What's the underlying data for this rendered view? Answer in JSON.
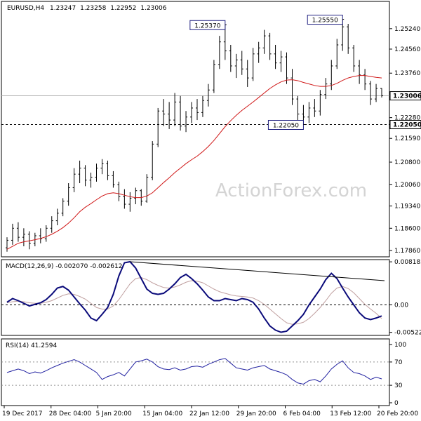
{
  "chart_data": [
    {
      "type": "candlestick",
      "header": {
        "symbol": "EURUSD,H4",
        "open": "1.23247",
        "high": "1.23258",
        "low": "1.22952",
        "close": "1.23006"
      },
      "y_ticks": [
        "1.25240",
        "1.24560",
        "1.23760",
        "1.22280",
        "1.21590",
        "1.20800",
        "1.20060",
        "1.19340",
        "1.18600",
        "1.17860"
      ],
      "ylim": [
        1.1765,
        1.261
      ],
      "last_price": "1.23006",
      "support_level": "1.22050",
      "callouts": [
        "1.25370",
        "1.25550",
        "1.22050"
      ],
      "watermark": "ActionForex.com",
      "price_ohlc": [
        {
          "o": 1.1795,
          "h": 1.183,
          "l": 1.1782,
          "c": 1.182
        },
        {
          "o": 1.182,
          "h": 1.1875,
          "l": 1.1805,
          "c": 1.186
        },
        {
          "o": 1.186,
          "h": 1.188,
          "l": 1.1815,
          "c": 1.183
        },
        {
          "o": 1.183,
          "h": 1.186,
          "l": 1.18,
          "c": 1.184
        },
        {
          "o": 1.184,
          "h": 1.185,
          "l": 1.179,
          "c": 1.181
        },
        {
          "o": 1.181,
          "h": 1.1845,
          "l": 1.18,
          "c": 1.1835
        },
        {
          "o": 1.1835,
          "h": 1.186,
          "l": 1.181,
          "c": 1.1825
        },
        {
          "o": 1.1825,
          "h": 1.187,
          "l": 1.1815,
          "c": 1.186
        },
        {
          "o": 1.186,
          "h": 1.19,
          "l": 1.1845,
          "c": 1.1885
        },
        {
          "o": 1.1885,
          "h": 1.1925,
          "l": 1.187,
          "c": 1.191
        },
        {
          "o": 1.191,
          "h": 1.196,
          "l": 1.19,
          "c": 1.195
        },
        {
          "o": 1.195,
          "h": 1.201,
          "l": 1.1935,
          "c": 1.1995
        },
        {
          "o": 1.1995,
          "h": 1.206,
          "l": 1.198,
          "c": 1.204
        },
        {
          "o": 1.204,
          "h": 1.2085,
          "l": 1.201,
          "c": 1.206
        },
        {
          "o": 1.206,
          "h": 1.207,
          "l": 1.2,
          "c": 1.202
        },
        {
          "o": 1.202,
          "h": 1.2045,
          "l": 1.1995,
          "c": 1.203
        },
        {
          "o": 1.203,
          "h": 1.2075,
          "l": 1.2015,
          "c": 1.206
        },
        {
          "o": 1.206,
          "h": 1.209,
          "l": 1.204,
          "c": 1.2075
        },
        {
          "o": 1.2075,
          "h": 1.2085,
          "l": 1.202,
          "c": 1.2035
        },
        {
          "o": 1.2035,
          "h": 1.205,
          "l": 1.1995,
          "c": 1.2005
        },
        {
          "o": 1.2005,
          "h": 1.2015,
          "l": 1.195,
          "c": 1.1965
        },
        {
          "o": 1.1965,
          "h": 1.199,
          "l": 1.1925,
          "c": 1.194
        },
        {
          "o": 1.194,
          "h": 1.198,
          "l": 1.1915,
          "c": 1.196
        },
        {
          "o": 1.196,
          "h": 1.1995,
          "l": 1.194,
          "c": 1.1985
        },
        {
          "o": 1.1985,
          "h": 1.199,
          "l": 1.1935,
          "c": 1.195
        },
        {
          "o": 1.195,
          "h": 1.204,
          "l": 1.1945,
          "c": 1.203
        },
        {
          "o": 1.203,
          "h": 1.215,
          "l": 1.202,
          "c": 1.214
        },
        {
          "o": 1.214,
          "h": 1.226,
          "l": 1.213,
          "c": 1.225
        },
        {
          "o": 1.225,
          "h": 1.229,
          "l": 1.22,
          "c": 1.224
        },
        {
          "o": 1.224,
          "h": 1.228,
          "l": 1.219,
          "c": 1.222
        },
        {
          "o": 1.222,
          "h": 1.231,
          "l": 1.22,
          "c": 1.228
        },
        {
          "o": 1.228,
          "h": 1.23,
          "l": 1.2185,
          "c": 1.22
        },
        {
          "o": 1.22,
          "h": 1.225,
          "l": 1.218,
          "c": 1.223
        },
        {
          "o": 1.223,
          "h": 1.228,
          "l": 1.221,
          "c": 1.226
        },
        {
          "o": 1.226,
          "h": 1.229,
          "l": 1.222,
          "c": 1.2245
        },
        {
          "o": 1.2245,
          "h": 1.23,
          "l": 1.223,
          "c": 1.2285
        },
        {
          "o": 1.2285,
          "h": 1.234,
          "l": 1.2265,
          "c": 1.232
        },
        {
          "o": 1.232,
          "h": 1.242,
          "l": 1.231,
          "c": 1.2405
        },
        {
          "o": 1.2405,
          "h": 1.25,
          "l": 1.239,
          "c": 1.248
        },
        {
          "o": 1.248,
          "h": 1.2537,
          "l": 1.242,
          "c": 1.245
        },
        {
          "o": 1.245,
          "h": 1.247,
          "l": 1.238,
          "c": 1.24
        },
        {
          "o": 1.24,
          "h": 1.244,
          "l": 1.236,
          "c": 1.242
        },
        {
          "o": 1.242,
          "h": 1.245,
          "l": 1.237,
          "c": 1.239
        },
        {
          "o": 1.239,
          "h": 1.242,
          "l": 1.233,
          "c": 1.236
        },
        {
          "o": 1.236,
          "h": 1.246,
          "l": 1.235,
          "c": 1.244
        },
        {
          "o": 1.244,
          "h": 1.248,
          "l": 1.241,
          "c": 1.246
        },
        {
          "o": 1.246,
          "h": 1.252,
          "l": 1.244,
          "c": 1.25
        },
        {
          "o": 1.25,
          "h": 1.251,
          "l": 1.242,
          "c": 1.244
        },
        {
          "o": 1.244,
          "h": 1.247,
          "l": 1.239,
          "c": 1.241
        },
        {
          "o": 1.241,
          "h": 1.245,
          "l": 1.238,
          "c": 1.243
        },
        {
          "o": 1.243,
          "h": 1.2445,
          "l": 1.234,
          "c": 1.236
        },
        {
          "o": 1.236,
          "h": 1.239,
          "l": 1.227,
          "c": 1.229
        },
        {
          "o": 1.229,
          "h": 1.23,
          "l": 1.222,
          "c": 1.224
        },
        {
          "o": 1.224,
          "h": 1.227,
          "l": 1.2205,
          "c": 1.223
        },
        {
          "o": 1.223,
          "h": 1.228,
          "l": 1.221,
          "c": 1.226
        },
        {
          "o": 1.226,
          "h": 1.229,
          "l": 1.223,
          "c": 1.225
        },
        {
          "o": 1.225,
          "h": 1.232,
          "l": 1.2235,
          "c": 1.2305
        },
        {
          "o": 1.2305,
          "h": 1.236,
          "l": 1.229,
          "c": 1.234
        },
        {
          "o": 1.234,
          "h": 1.242,
          "l": 1.232,
          "c": 1.24
        },
        {
          "o": 1.24,
          "h": 1.249,
          "l": 1.239,
          "c": 1.247
        },
        {
          "o": 1.247,
          "h": 1.2555,
          "l": 1.245,
          "c": 1.253
        },
        {
          "o": 1.253,
          "h": 1.254,
          "l": 1.244,
          "c": 1.246
        },
        {
          "o": 1.246,
          "h": 1.247,
          "l": 1.238,
          "c": 1.24
        },
        {
          "o": 1.24,
          "h": 1.242,
          "l": 1.234,
          "c": 1.237
        },
        {
          "o": 1.237,
          "h": 1.239,
          "l": 1.232,
          "c": 1.234
        },
        {
          "o": 1.234,
          "h": 1.235,
          "l": 1.227,
          "c": 1.229
        },
        {
          "o": 1.229,
          "h": 1.234,
          "l": 1.228,
          "c": 1.2325
        },
        {
          "o": 1.2325,
          "h": 1.2326,
          "l": 1.2295,
          "c": 1.2301
        }
      ],
      "ma_values": [
        1.179,
        1.18,
        1.181,
        1.1815,
        1.1818,
        1.1822,
        1.1826,
        1.1832,
        1.184,
        1.185,
        1.1862,
        1.1877,
        1.1895,
        1.1915,
        1.193,
        1.1942,
        1.1955,
        1.1967,
        1.1975,
        1.1978,
        1.1975,
        1.197,
        1.1965,
        1.1962,
        1.1962,
        1.1967,
        1.1978,
        1.1995,
        1.2012,
        1.2028,
        1.2045,
        1.206,
        1.2075,
        1.2088,
        1.21,
        1.2115,
        1.2132,
        1.2152,
        1.2175,
        1.2198,
        1.2218,
        1.2236,
        1.2252,
        1.2266,
        1.228,
        1.2295,
        1.231,
        1.2325,
        1.2337,
        1.2347,
        1.2353,
        1.2354,
        1.2351,
        1.2345,
        1.234,
        1.2335,
        1.2332,
        1.2332,
        1.2335,
        1.2342,
        1.2352,
        1.236,
        1.2365,
        1.2368,
        1.2368,
        1.2365,
        1.2362,
        1.236
      ],
      "macd": {
        "label": "MACD(12,26,9) -0.002070 -0.002612",
        "y_ticks": [
          "0.008182",
          "0.00",
          "-0.005223"
        ],
        "ylim": [
          -0.0058,
          0.0086
        ],
        "macd_values": [
          0.0005,
          0.0012,
          0.0008,
          0.0003,
          -0.0002,
          0.0001,
          0.0004,
          0.001,
          0.002,
          0.0032,
          0.0035,
          0.0028,
          0.0015,
          0.0002,
          -0.001,
          -0.0025,
          -0.003,
          -0.0018,
          -0.0005,
          0.002,
          0.0055,
          0.008,
          0.0082,
          0.007,
          0.005,
          0.003,
          0.0022,
          0.002,
          0.0022,
          0.003,
          0.004,
          0.0052,
          0.0058,
          0.005,
          0.004,
          0.0028,
          0.0015,
          0.0008,
          0.0008,
          0.0012,
          0.001,
          0.0008,
          0.0012,
          0.001,
          0.0005,
          -0.0008,
          -0.0025,
          -0.004,
          -0.0048,
          -0.0052,
          -0.005,
          -0.004,
          -0.003,
          -0.0018,
          0.0,
          0.0015,
          0.003,
          0.0048,
          0.006,
          0.005,
          0.0032,
          0.0015,
          0.0,
          -0.0015,
          -0.0025,
          -0.0028,
          -0.0025,
          -0.0021
        ],
        "signal_values": [
          0.0004,
          0.0006,
          0.0007,
          0.0006,
          0.0004,
          0.0003,
          0.0003,
          0.0005,
          0.0008,
          0.0013,
          0.0018,
          0.0021,
          0.002,
          0.0016,
          0.0011,
          0.0003,
          -0.0005,
          -0.0008,
          -0.0008,
          -0.0002,
          0.001,
          0.0025,
          0.004,
          0.005,
          0.0052,
          0.0048,
          0.0042,
          0.0037,
          0.0033,
          0.0032,
          0.0034,
          0.0038,
          0.0043,
          0.0046,
          0.0045,
          0.0042,
          0.0036,
          0.003,
          0.0025,
          0.0022,
          0.0019,
          0.0017,
          0.0016,
          0.0015,
          0.0013,
          0.0008,
          0.0001,
          -0.0008,
          -0.0017,
          -0.0026,
          -0.0034,
          -0.0037,
          -0.0036,
          -0.0033,
          -0.0026,
          -0.0016,
          -0.0005,
          0.0008,
          0.0022,
          0.0032,
          0.0035,
          0.0031,
          0.0023,
          0.0012,
          0.0001,
          -0.0008,
          -0.0016,
          -0.0026
        ]
      },
      "rsi": {
        "label": "RSI(14) 41.2594",
        "y_ticks": [
          "100",
          "70",
          "30",
          "0"
        ],
        "ylim": [
          0,
          100
        ],
        "levels": [
          70,
          30
        ],
        "values": [
          52,
          55,
          58,
          55,
          50,
          53,
          51,
          55,
          60,
          64,
          68,
          71,
          74,
          70,
          64,
          58,
          52,
          40,
          45,
          48,
          52,
          46,
          58,
          70,
          72,
          75,
          70,
          62,
          58,
          57,
          60,
          56,
          58,
          62,
          63,
          61,
          66,
          70,
          74,
          76,
          68,
          60,
          58,
          56,
          60,
          62,
          64,
          58,
          55,
          52,
          48,
          40,
          34,
          32,
          38,
          40,
          36,
          46,
          58,
          66,
          72,
          60,
          52,
          50,
          46,
          40,
          44,
          41
        ]
      },
      "x_labels": [
        "19 Dec 2017",
        "28 Dec 04:00",
        "5 Jan 20:00",
        "15 Jan 04:00",
        "22 Jan 12:00",
        "29 Jan 20:00",
        "6 Feb 04:00",
        "13 Feb 12:00",
        "20 Feb 20:00"
      ],
      "colors": {
        "ma": "#d01818",
        "macd": "#0a0a7a",
        "signal": "#c0a0a0",
        "candle": "#000000",
        "callout_border": "#202080",
        "rsi": "#2020a0"
      }
    }
  ]
}
